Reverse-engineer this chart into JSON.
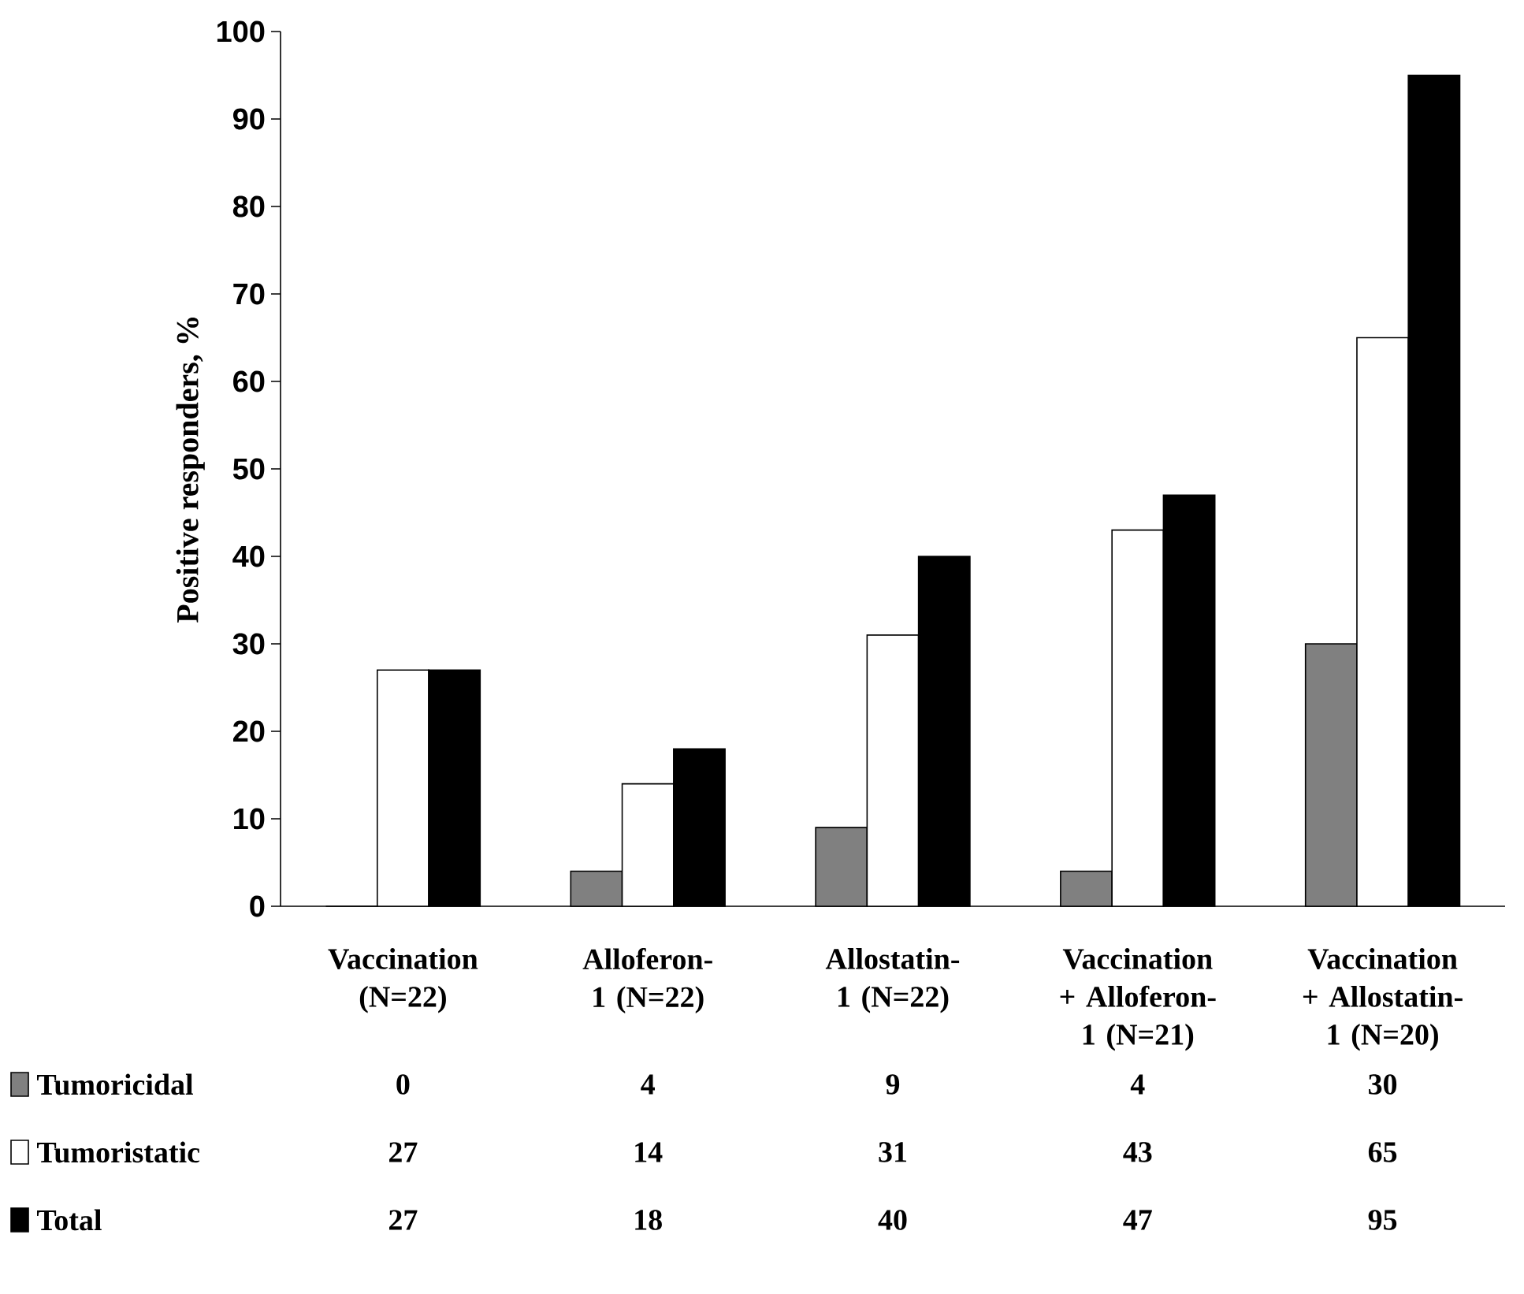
{
  "chart_data": {
    "type": "bar",
    "ylabel": "Positive responders, %",
    "categories": [
      "Vaccination (N=22)",
      "Alloferon-1 (N=22)",
      "Allostatin-1 (N=22)",
      "Vaccination + Alloferon-1 (N=21)",
      "Vaccination + Allostatin-1 (N=20)"
    ],
    "series": [
      {
        "name": "Tumoricidal",
        "color": "#808080",
        "values": [
          0,
          4,
          9,
          4,
          30
        ]
      },
      {
        "name": "Tumoristatic",
        "color": "#ffffff",
        "values": [
          27,
          14,
          31,
          43,
          65
        ]
      },
      {
        "name": "Total",
        "color": "#000000",
        "values": [
          27,
          18,
          40,
          47,
          95
        ]
      }
    ],
    "ylim": [
      0,
      100
    ],
    "yticks": [
      0,
      10,
      20,
      30,
      40,
      50,
      60,
      70,
      80,
      90,
      100
    ],
    "data_labels": true,
    "legend": "bottom",
    "grid": false
  }
}
